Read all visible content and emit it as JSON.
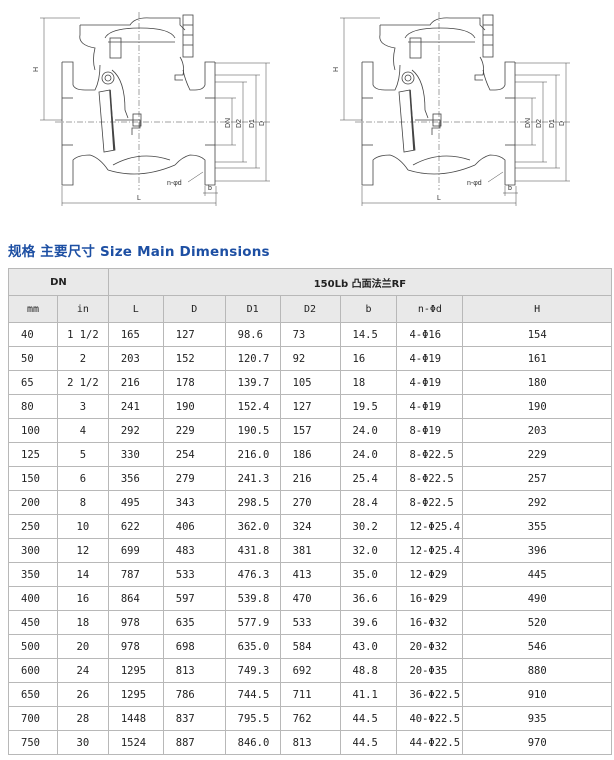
{
  "drawing": {
    "labels": {
      "H": "H",
      "DN": "DN",
      "D2": "D2",
      "D1": "D1",
      "D": "D",
      "hole": "n-φd",
      "b": "b",
      "L": "L"
    }
  },
  "title": "规格 主要尺寸 Size Main Dimensions",
  "table": {
    "header_group_dn": "DN",
    "header_group_spec": "150Lb 凸面法兰RF",
    "columns": [
      "mm",
      "in",
      "L",
      "D",
      "D1",
      "D2",
      "b",
      "n-Φd",
      "H"
    ],
    "rows": [
      [
        "40",
        "1 1/2",
        "165",
        "127",
        "98.6",
        "73",
        "14.5",
        "4-Φ16",
        "154"
      ],
      [
        "50",
        "2",
        "203",
        "152",
        "120.7",
        "92",
        "16",
        "4-Φ19",
        "161"
      ],
      [
        "65",
        "2 1/2",
        "216",
        "178",
        "139.7",
        "105",
        "18",
        "4-Φ19",
        "180"
      ],
      [
        "80",
        "3",
        "241",
        "190",
        "152.4",
        "127",
        "19.5",
        "4-Φ19",
        "190"
      ],
      [
        "100",
        "4",
        "292",
        "229",
        "190.5",
        "157",
        "24.0",
        "8-Φ19",
        "203"
      ],
      [
        "125",
        "5",
        "330",
        "254",
        "216.0",
        "186",
        "24.0",
        "8-Φ22.5",
        "229"
      ],
      [
        "150",
        "6",
        "356",
        "279",
        "241.3",
        "216",
        "25.4",
        "8-Φ22.5",
        "257"
      ],
      [
        "200",
        "8",
        "495",
        "343",
        "298.5",
        "270",
        "28.4",
        "8-Φ22.5",
        "292"
      ],
      [
        "250",
        "10",
        "622",
        "406",
        "362.0",
        "324",
        "30.2",
        "12-Φ25.4",
        "355"
      ],
      [
        "300",
        "12",
        "699",
        "483",
        "431.8",
        "381",
        "32.0",
        "12-Φ25.4",
        "396"
      ],
      [
        "350",
        "14",
        "787",
        "533",
        "476.3",
        "413",
        "35.0",
        "12-Φ29",
        "445"
      ],
      [
        "400",
        "16",
        "864",
        "597",
        "539.8",
        "470",
        "36.6",
        "16-Φ29",
        "490"
      ],
      [
        "450",
        "18",
        "978",
        "635",
        "577.9",
        "533",
        "39.6",
        "16-Φ32",
        "520"
      ],
      [
        "500",
        "20",
        "978",
        "698",
        "635.0",
        "584",
        "43.0",
        "20-Φ32",
        "546"
      ],
      [
        "600",
        "24",
        "1295",
        "813",
        "749.3",
        "692",
        "48.8",
        "20-Φ35",
        "880"
      ],
      [
        "650",
        "26",
        "1295",
        "786",
        "744.5",
        "711",
        "41.1",
        "36-Φ22.5",
        "910"
      ],
      [
        "700",
        "28",
        "1448",
        "837",
        "795.5",
        "762",
        "44.5",
        "40-Φ22.5",
        "935"
      ],
      [
        "750",
        "30",
        "1524",
        "887",
        "846.0",
        "813",
        "44.5",
        "44-Φ22.5",
        "970"
      ]
    ]
  }
}
